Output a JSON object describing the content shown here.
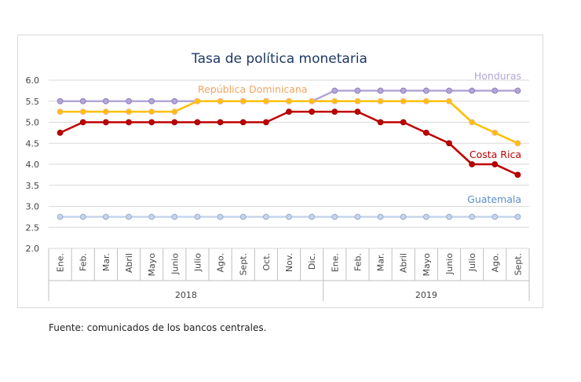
{
  "chart_data": {
    "type": "line",
    "title": "Tasa de política monetaria",
    "ylim": [
      2.0,
      6.0
    ],
    "yticks": [
      "2.0",
      "2.5",
      "3.0",
      "3.5",
      "4.0",
      "4.5",
      "5.0",
      "5.5",
      "6.0"
    ],
    "ytick_values": [
      2.0,
      2.5,
      3.0,
      3.5,
      4.0,
      4.5,
      5.0,
      5.5,
      6.0
    ],
    "grid": true,
    "categories": [
      "Ene.",
      "Feb.",
      "Mar.",
      "Abril",
      "Mayo",
      "Junio",
      "Julio",
      "Ago.",
      "Sept.",
      "Oct.",
      "Nov.",
      "Dic.",
      "Ene.",
      "Feb.",
      "Mar.",
      "Abril",
      "Mayo",
      "Junio",
      "Julio",
      "Ago.",
      "Sept."
    ],
    "year_groups": [
      {
        "label": "2018",
        "count": 12
      },
      {
        "label": "2019",
        "count": 9
      }
    ],
    "series": [
      {
        "name": "Honduras",
        "color": "#b4a7d6",
        "marker": "#8e7cc3",
        "values": [
          5.5,
          5.5,
          5.5,
          5.5,
          5.5,
          5.5,
          5.5,
          5.5,
          5.5,
          5.5,
          5.5,
          5.5,
          5.75,
          5.75,
          5.75,
          5.75,
          5.75,
          5.75,
          5.75,
          5.75,
          5.75
        ]
      },
      {
        "name": "República Dominicana",
        "color": "#ffc000",
        "marker": "#f4b183",
        "values": [
          5.25,
          5.25,
          5.25,
          5.25,
          5.25,
          5.25,
          5.5,
          5.5,
          5.5,
          5.5,
          5.5,
          5.5,
          5.5,
          5.5,
          5.5,
          5.5,
          5.5,
          5.5,
          5.0,
          4.75,
          4.5
        ]
      },
      {
        "name": "Costa Rica",
        "color": "#c00000",
        "marker": "#c00000",
        "values": [
          4.75,
          5.0,
          5.0,
          5.0,
          5.0,
          5.0,
          5.0,
          5.0,
          5.0,
          5.0,
          5.25,
          5.25,
          5.25,
          5.25,
          5.0,
          5.0,
          4.75,
          4.5,
          4.0,
          4.0,
          3.75
        ]
      },
      {
        "name": "Guatemala",
        "color": "#c5d5ef",
        "marker": "#c5d5ef",
        "values": [
          2.75,
          2.75,
          2.75,
          2.75,
          2.75,
          2.75,
          2.75,
          2.75,
          2.75,
          2.75,
          2.75,
          2.75,
          2.75,
          2.75,
          2.75,
          2.75,
          2.75,
          2.75,
          2.75,
          2.75,
          2.75
        ]
      }
    ],
    "series_labels": [
      {
        "text": "Honduras",
        "color": "#b4a7d6"
      },
      {
        "text": "República Dominicana",
        "color": "#f4a460"
      },
      {
        "text": "Costa Rica",
        "color": "#c00000"
      },
      {
        "text": "Guatemala",
        "color": "#5b8fc9"
      }
    ]
  },
  "source_note": "Fuente: comunicados de los bancos centrales."
}
